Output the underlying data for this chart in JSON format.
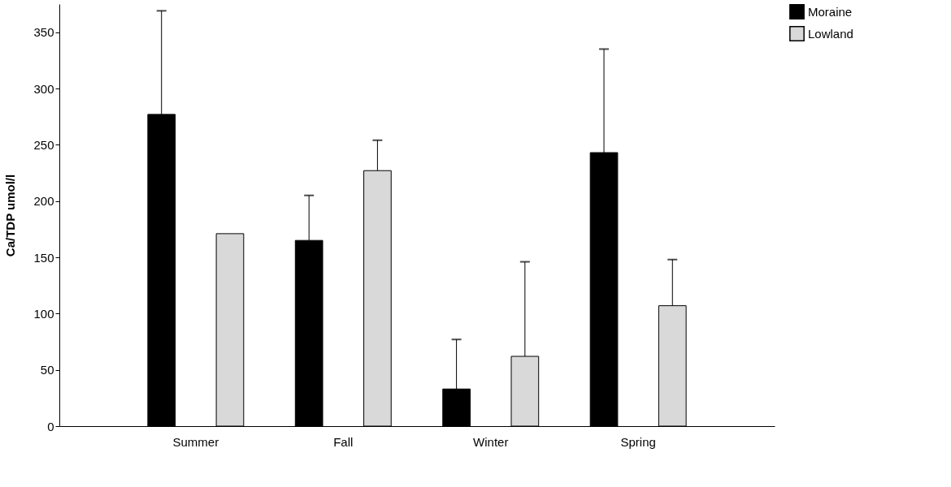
{
  "chart_data": {
    "type": "bar",
    "ylabel": "Ca/TDP umol/l",
    "categories": [
      "Summer",
      "Fall",
      "Winter",
      "Spring"
    ],
    "series": [
      {
        "name": "Moraine",
        "color": "#000000",
        "values": [
          277,
          165,
          33,
          243
        ],
        "errors": [
          [
            277,
            369
          ],
          [
            165,
            205
          ],
          [
            33,
            77
          ],
          [
            243,
            335
          ]
        ]
      },
      {
        "name": "Lowland",
        "color": "#d9d9d9",
        "values": [
          171,
          227,
          62,
          107
        ],
        "errors": [
          null,
          [
            227,
            254
          ],
          [
            62,
            146
          ],
          [
            107,
            148
          ]
        ]
      }
    ],
    "ylim": [
      0,
      375
    ],
    "yticks": [
      0,
      50,
      100,
      150,
      200,
      250,
      300,
      350
    ],
    "grid": false,
    "legend": "right"
  }
}
